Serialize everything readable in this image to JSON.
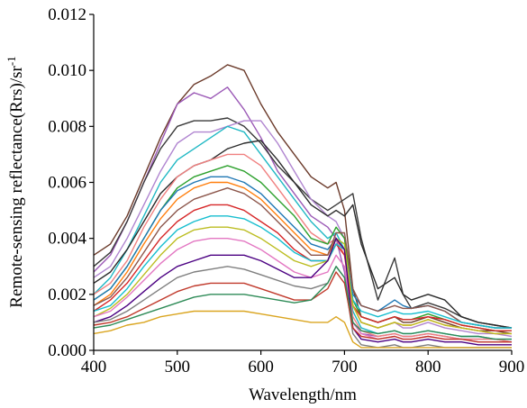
{
  "chart_data": {
    "type": "line",
    "xlabel": "Wavelength/nm",
    "ylabel": "Remote-sensing reflectance(Rrs)/sr",
    "ylabel_superscript": "-1",
    "xlim": [
      400,
      900
    ],
    "ylim": [
      0,
      0.012
    ],
    "x_ticks": [
      "400",
      "500",
      "600",
      "700",
      "800",
      "900"
    ],
    "y_ticks": [
      "0.000",
      "0.002",
      "0.004",
      "0.006",
      "0.008",
      "0.010",
      "0.012"
    ],
    "grid": false,
    "x": [
      400,
      420,
      440,
      460,
      480,
      500,
      520,
      540,
      560,
      580,
      600,
      620,
      640,
      660,
      680,
      690,
      700,
      710,
      720,
      740,
      760,
      770,
      780,
      800,
      820,
      840,
      860,
      880,
      900
    ],
    "series": [
      {
        "color": "#6b3a2a",
        "values": [
          0.0034,
          0.0038,
          0.0048,
          0.0062,
          0.0076,
          0.0088,
          0.0095,
          0.0098,
          0.0102,
          0.01,
          0.0088,
          0.0078,
          0.007,
          0.0062,
          0.0058,
          0.006,
          0.005,
          0.0022,
          0.0012,
          0.001,
          0.0012,
          0.001,
          0.001,
          0.0012,
          0.001,
          0.0008,
          0.0007,
          0.0007,
          0.0006
        ]
      },
      {
        "color": "#9b59b6",
        "values": [
          0.0028,
          0.0034,
          0.0046,
          0.006,
          0.0074,
          0.0088,
          0.0092,
          0.009,
          0.0094,
          0.0086,
          0.0076,
          0.0064,
          0.0056,
          0.0048,
          0.0044,
          0.004,
          0.0028,
          0.001,
          0.0006,
          0.0005,
          0.0006,
          0.0005,
          0.0005,
          0.0006,
          0.0005,
          0.0004,
          0.0004,
          0.0004,
          0.0003
        ]
      },
      {
        "color": "#3a3a3a",
        "values": [
          0.003,
          0.0035,
          0.0046,
          0.006,
          0.0072,
          0.008,
          0.0082,
          0.0082,
          0.0083,
          0.008,
          0.0074,
          0.0066,
          0.006,
          0.0054,
          0.005,
          0.0052,
          0.0054,
          0.0056,
          0.004,
          0.0018,
          0.0033,
          0.002,
          0.0015,
          0.0017,
          0.0015,
          0.0012,
          0.001,
          0.0009,
          0.0008
        ]
      },
      {
        "color": "#b085d0",
        "values": [
          0.0026,
          0.003,
          0.004,
          0.0052,
          0.0064,
          0.0074,
          0.0078,
          0.0078,
          0.008,
          0.0082,
          0.0082,
          0.0074,
          0.0064,
          0.0054,
          0.0048,
          0.0046,
          0.004,
          0.0016,
          0.001,
          0.0008,
          0.001,
          0.0008,
          0.0008,
          0.001,
          0.0008,
          0.0007,
          0.0006,
          0.0006,
          0.0005
        ]
      },
      {
        "color": "#1fb8c4",
        "values": [
          0.002,
          0.0026,
          0.0036,
          0.0048,
          0.006,
          0.0068,
          0.0072,
          0.0076,
          0.008,
          0.0078,
          0.007,
          0.0062,
          0.0054,
          0.0046,
          0.004,
          0.0042,
          0.0036,
          0.0014,
          0.0008,
          0.0006,
          0.0007,
          0.0006,
          0.0006,
          0.0007,
          0.0006,
          0.0005,
          0.0005,
          0.0004,
          0.0004
        ]
      },
      {
        "color": "#2a2a2a",
        "values": [
          0.0024,
          0.0028,
          0.0036,
          0.0046,
          0.0056,
          0.0062,
          0.0066,
          0.0068,
          0.0072,
          0.0074,
          0.0075,
          0.0068,
          0.006,
          0.0052,
          0.0048,
          0.005,
          0.0048,
          0.0052,
          0.0038,
          0.0022,
          0.0026,
          0.002,
          0.0018,
          0.002,
          0.0018,
          0.0012,
          0.001,
          0.0009,
          0.0008
        ]
      },
      {
        "color": "#f08080",
        "values": [
          0.002,
          0.0024,
          0.0032,
          0.0044,
          0.0054,
          0.0062,
          0.0066,
          0.0068,
          0.007,
          0.007,
          0.0066,
          0.0058,
          0.005,
          0.0042,
          0.0038,
          0.004,
          0.0034,
          0.0012,
          0.0007,
          0.0005,
          0.0006,
          0.0005,
          0.0005,
          0.0006,
          0.0005,
          0.0004,
          0.0004,
          0.0004,
          0.0003
        ]
      },
      {
        "color": "#2ca02c",
        "values": [
          0.0018,
          0.0022,
          0.003,
          0.004,
          0.005,
          0.0058,
          0.0062,
          0.0064,
          0.0066,
          0.0064,
          0.006,
          0.0054,
          0.0048,
          0.004,
          0.0038,
          0.0044,
          0.004,
          0.0018,
          0.0012,
          0.001,
          0.0012,
          0.0011,
          0.0011,
          0.0013,
          0.0011,
          0.0009,
          0.0008,
          0.0007,
          0.0007
        ]
      },
      {
        "color": "#1f77b4",
        "values": [
          0.0018,
          0.0022,
          0.003,
          0.004,
          0.005,
          0.0057,
          0.006,
          0.0062,
          0.0062,
          0.006,
          0.0056,
          0.005,
          0.0044,
          0.0038,
          0.0036,
          0.004,
          0.0036,
          0.002,
          0.0016,
          0.0014,
          0.0018,
          0.0016,
          0.0015,
          0.0016,
          0.0014,
          0.001,
          0.0009,
          0.0008,
          0.0008
        ]
      },
      {
        "color": "#ff7f0e",
        "values": [
          0.0016,
          0.002,
          0.0028,
          0.0038,
          0.0047,
          0.0054,
          0.0058,
          0.006,
          0.006,
          0.0058,
          0.0054,
          0.0048,
          0.0042,
          0.0036,
          0.0034,
          0.004,
          0.0036,
          0.0016,
          0.001,
          0.0008,
          0.001,
          0.0009,
          0.0009,
          0.0011,
          0.0009,
          0.0008,
          0.0007,
          0.0006,
          0.0006
        ]
      },
      {
        "color": "#8c564b",
        "values": [
          0.0016,
          0.0019,
          0.0026,
          0.0035,
          0.0044,
          0.005,
          0.0054,
          0.0056,
          0.0058,
          0.0056,
          0.0052,
          0.0046,
          0.004,
          0.0034,
          0.0034,
          0.0042,
          0.0042,
          0.0022,
          0.0016,
          0.0014,
          0.0016,
          0.0015,
          0.0015,
          0.0016,
          0.0014,
          0.001,
          0.0009,
          0.0008,
          0.0008
        ]
      },
      {
        "color": "#d62728",
        "values": [
          0.0014,
          0.0018,
          0.0024,
          0.0032,
          0.004,
          0.0046,
          0.005,
          0.0052,
          0.0052,
          0.005,
          0.0046,
          0.0042,
          0.0036,
          0.0032,
          0.0032,
          0.0038,
          0.0034,
          0.0016,
          0.0012,
          0.001,
          0.0012,
          0.0011,
          0.0011,
          0.0012,
          0.0011,
          0.0009,
          0.0008,
          0.0007,
          0.0007
        ]
      },
      {
        "color": "#17becf",
        "values": [
          0.0014,
          0.0016,
          0.0022,
          0.003,
          0.0037,
          0.0043,
          0.0046,
          0.0048,
          0.0048,
          0.0047,
          0.0044,
          0.004,
          0.0035,
          0.0032,
          0.0032,
          0.0038,
          0.0036,
          0.0018,
          0.0014,
          0.0012,
          0.0014,
          0.0013,
          0.0013,
          0.0014,
          0.0012,
          0.001,
          0.0009,
          0.0008,
          0.0008
        ]
      },
      {
        "color": "#bcbd22",
        "values": [
          0.0012,
          0.0015,
          0.002,
          0.0027,
          0.0034,
          0.004,
          0.0043,
          0.0044,
          0.0044,
          0.0043,
          0.004,
          0.0036,
          0.0032,
          0.003,
          0.0032,
          0.004,
          0.0038,
          0.0016,
          0.001,
          0.0008,
          0.001,
          0.0009,
          0.0009,
          0.0011,
          0.0009,
          0.0008,
          0.0007,
          0.0006,
          0.0006
        ]
      },
      {
        "color": "#e377c2",
        "values": [
          0.0012,
          0.0014,
          0.0019,
          0.0025,
          0.0031,
          0.0036,
          0.0039,
          0.004,
          0.004,
          0.0039,
          0.0036,
          0.0032,
          0.0028,
          0.0026,
          0.0028,
          0.0034,
          0.003,
          0.001,
          0.0006,
          0.0004,
          0.0005,
          0.0004,
          0.0004,
          0.0005,
          0.0004,
          0.0004,
          0.0003,
          0.0003,
          0.0003
        ]
      },
      {
        "color": "#4b0082",
        "values": [
          0.001,
          0.0012,
          0.0016,
          0.0021,
          0.0026,
          0.003,
          0.0032,
          0.0034,
          0.0034,
          0.0034,
          0.0032,
          0.0029,
          0.0026,
          0.0026,
          0.0032,
          0.004,
          0.0036,
          0.0008,
          0.0004,
          0.0003,
          0.0004,
          0.0003,
          0.0003,
          0.0004,
          0.0003,
          0.0003,
          0.0002,
          0.0002,
          0.0002
        ]
      },
      {
        "color": "#7f7f7f",
        "values": [
          0.001,
          0.0011,
          0.0014,
          0.0018,
          0.0022,
          0.0026,
          0.0028,
          0.0029,
          0.003,
          0.0029,
          0.0027,
          0.0025,
          0.0023,
          0.0022,
          0.0024,
          0.003,
          0.0026,
          0.0006,
          0.0002,
          0.0001,
          0.0002,
          0.0001,
          0.0001,
          0.0002,
          0.0001,
          0.0001,
          0.0001,
          0.0001,
          0.0001
        ]
      },
      {
        "color": "#c0392b",
        "values": [
          0.0009,
          0.001,
          0.0012,
          0.0015,
          0.0018,
          0.0021,
          0.0023,
          0.0024,
          0.0024,
          0.0024,
          0.0022,
          0.002,
          0.0018,
          0.0018,
          0.0022,
          0.0028,
          0.0024,
          0.0008,
          0.0005,
          0.0004,
          0.0005,
          0.0004,
          0.0004,
          0.0005,
          0.0004,
          0.0004,
          0.0003,
          0.0003,
          0.0003
        ]
      },
      {
        "color": "#2e8b57",
        "values": [
          0.0008,
          0.0009,
          0.0011,
          0.0013,
          0.0015,
          0.0017,
          0.0019,
          0.002,
          0.002,
          0.002,
          0.0019,
          0.0018,
          0.0017,
          0.0018,
          0.0024,
          0.003,
          0.0026,
          0.001,
          0.0007,
          0.0006,
          0.0007,
          0.0006,
          0.0006,
          0.0007,
          0.0006,
          0.0005,
          0.0005,
          0.0004,
          0.0004
        ]
      },
      {
        "color": "#daa520",
        "values": [
          0.0006,
          0.0007,
          0.0009,
          0.001,
          0.0012,
          0.0013,
          0.0014,
          0.0014,
          0.0014,
          0.0014,
          0.0013,
          0.0012,
          0.0011,
          0.001,
          0.001,
          0.0012,
          0.001,
          0.0003,
          0.0001,
          0.0001,
          0.0001,
          0.0001,
          0.0001,
          0.0001,
          0.0001,
          0.0001,
          0.0001,
          0.0001,
          0.0001
        ]
      }
    ]
  }
}
